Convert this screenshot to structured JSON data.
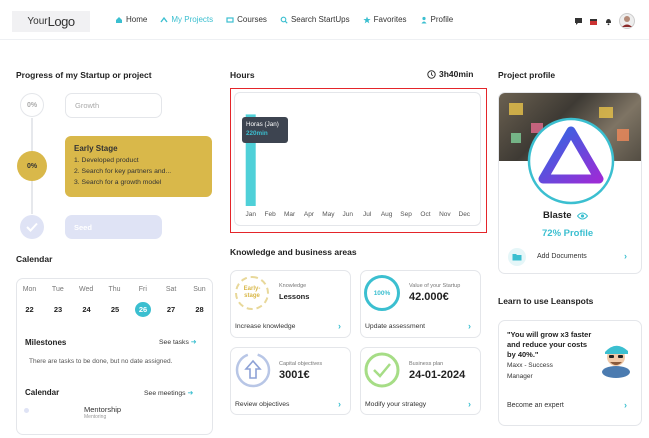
{
  "header": {
    "logo_prefix": "Your",
    "logo_main": "Logo",
    "nav": [
      {
        "label": "Home",
        "icon": "home-icon",
        "active": false
      },
      {
        "label": "My Projects",
        "icon": "projects-icon",
        "active": true
      },
      {
        "label": "Courses",
        "icon": "courses-icon",
        "active": false
      },
      {
        "label": "Search StartUps",
        "icon": "search-icon",
        "active": false
      },
      {
        "label": "Favorites",
        "icon": "star-icon",
        "active": false
      },
      {
        "label": "Profile",
        "icon": "user-icon",
        "active": false
      }
    ]
  },
  "progress": {
    "title": "Progress of my Startup or project",
    "steps": [
      {
        "percent": "0%",
        "label": "Growth"
      },
      {
        "percent": "0%",
        "label": "Early Stage",
        "items": [
          "1. Developed product",
          "2. Search for key partners and...",
          "3. Search for a growth model"
        ]
      },
      {
        "label": "Seed"
      }
    ]
  },
  "calendar": {
    "title": "Calendar",
    "days": [
      "Mon",
      "Tue",
      "Wed",
      "Thu",
      "Fri",
      "Sat",
      "Sun"
    ],
    "dates": [
      "22",
      "23",
      "24",
      "25",
      "26",
      "27",
      "28"
    ],
    "today_index": 4,
    "milestones_title": "Milestones",
    "see_tasks": "See tasks",
    "milestones_text": "There are tasks to be done, but no date assigned.",
    "calendar_title": "Calendar",
    "see_meetings": "See meetings",
    "event_title": "Mentorship",
    "event_subtitle": "Mentoring"
  },
  "hours": {
    "title": "Hours",
    "total": "3h40min",
    "tooltip_title": "Horas (Jan)",
    "tooltip_value": "220min"
  },
  "chart_data": {
    "type": "bar",
    "categories": [
      "Jan",
      "Feb",
      "Mar",
      "Apr",
      "May",
      "Jun",
      "Jul",
      "Aug",
      "Sep",
      "Oct",
      "Nov",
      "Dec"
    ],
    "values": [
      220,
      0,
      0,
      0,
      0,
      0,
      0,
      0,
      0,
      0,
      0,
      0
    ],
    "ylim": [
      0,
      245
    ],
    "color": "#4fd0d8"
  },
  "knowledge": {
    "title": "Knowledge and business areas",
    "cards": [
      {
        "badge": "Early-stage",
        "label": "Knowledge",
        "value": "Lessons",
        "link": "Increase knowledge"
      },
      {
        "badge": "100%",
        "label": "Value of your Startup",
        "value": "42.000€",
        "link": "Update assessment"
      },
      {
        "label": "Capital objectives",
        "value": "3001€",
        "link": "Review objectives"
      },
      {
        "label": "Business plan",
        "value": "24-01-2024",
        "link": "Modify your strategy"
      }
    ]
  },
  "profile": {
    "title": "Project profile",
    "name": "Blaste",
    "percent_label": "72% Profile",
    "documents": "Add Documents"
  },
  "learn": {
    "title": "Learn to use Leanspots",
    "quote": "\"You will grow x3 faster and reduce your costs by 40%.\"",
    "author": "Maxx - Success Manager",
    "cta": "Become an expert"
  },
  "colors": {
    "accent": "#3bbfd0",
    "early": "#d9b84a",
    "seed": "#dfe3f5",
    "highlight": "#e4252a"
  }
}
